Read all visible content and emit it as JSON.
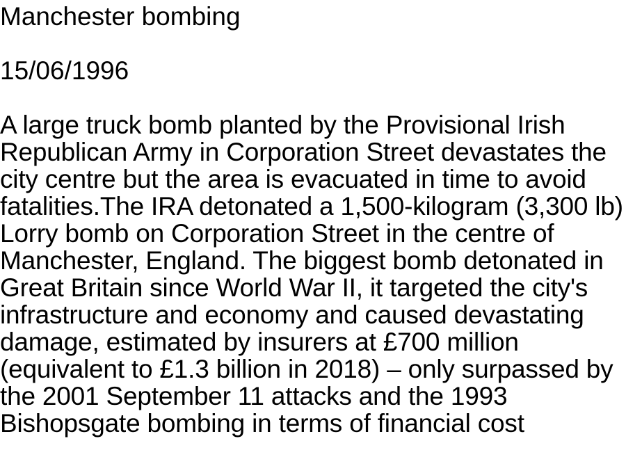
{
  "document": {
    "title": "Manchester bombing",
    "date": "15/06/1996",
    "body": "A large truck bomb planted by the Provisional Irish Republican Army in Corporation Street devastates the city centre but the area is evacuated in time to avoid fatalities.The IRA detonated a 1,500-kilogram (3,300 lb) Lorry bomb on Corporation Street in the centre of Manchester, England. The biggest bomb detonated in Great Britain since World War II, it targeted the city's infrastructure and economy and caused devastating damage, estimated by insurers at £700 million (equivalent to £1.3 billion in 2018) – only surpassed by the 2001 September 11 attacks and the 1993 Bishopsgate bombing in terms of financial cost"
  }
}
